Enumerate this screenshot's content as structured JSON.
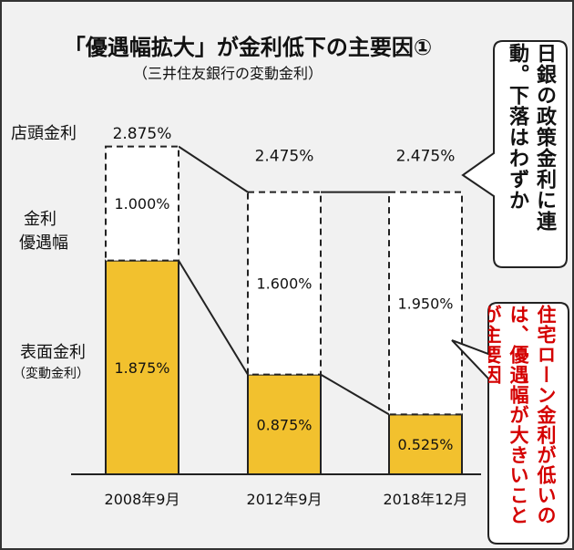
{
  "title": "「優遇幅拡大」が金利低下の主要因①",
  "subtitle": "（三井住友銀行の変動金利）",
  "labels": {
    "store_rate": "店頭金利",
    "preferential_line1": "金利",
    "preferential_line2": "優遇幅",
    "surface_line1": "表面金利",
    "surface_line2": "（変動金利）"
  },
  "callouts": {
    "top": "日銀の政策金利に連動。下落はわずか",
    "bottom": "住宅ローン金利が低いのは、優遇幅が大きいことが主要因"
  },
  "colors": {
    "surface": "#f2c12e",
    "preferential": "#ffffff",
    "border": "#222222",
    "highlight_text": "#d40000",
    "background": "#f1f1f1"
  },
  "chart_data": {
    "type": "bar",
    "stacked": true,
    "categories": [
      "2008年9月",
      "2012年9月",
      "2018年12月"
    ],
    "series": [
      {
        "name": "表面金利（変動金利）",
        "values": [
          1.875,
          0.875,
          0.525
        ],
        "labels": [
          "1.875%",
          "0.875%",
          "0.525%"
        ]
      },
      {
        "name": "金利優遇幅",
        "values": [
          1.0,
          1.6,
          1.95
        ],
        "labels": [
          "1.000%",
          "1.600%",
          "1.950%"
        ]
      }
    ],
    "totals": [
      2.875,
      2.475,
      2.475
    ],
    "total_labels": [
      "2.875%",
      "2.475%",
      "2.475%"
    ],
    "ylim": [
      0,
      3.2
    ]
  }
}
